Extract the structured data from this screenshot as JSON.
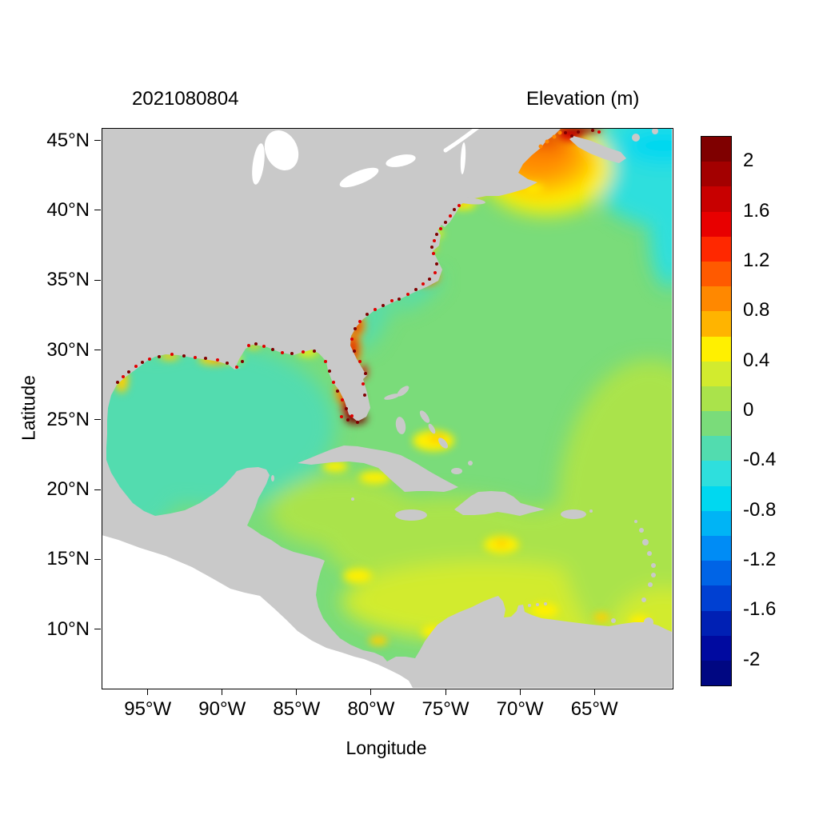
{
  "figure": {
    "background": "#ffffff",
    "title": "2021080804",
    "legend_title": "Elevation (m)"
  },
  "chart_data": {
    "type": "heatmap",
    "subtype": "geospatial elevation field map (storm-surge / sea-surface elevation)",
    "title": "2021080804",
    "legend_title": "Elevation (m)",
    "xlabel": "Longitude",
    "ylabel": "Latitude",
    "x_axis": {
      "range": [
        -98.1,
        -59.8
      ],
      "ticks": [
        {
          "value": -95,
          "label": "95°W"
        },
        {
          "value": -90,
          "label": "90°W"
        },
        {
          "value": -85,
          "label": "85°W"
        },
        {
          "value": -80,
          "label": "80°W"
        },
        {
          "value": -75,
          "label": "75°W"
        },
        {
          "value": -70,
          "label": "70°W"
        },
        {
          "value": -65,
          "label": "65°W"
        }
      ]
    },
    "y_axis": {
      "range": [
        5.8,
        45.9
      ],
      "ticks": [
        {
          "value": 45,
          "label": "45°N"
        },
        {
          "value": 40,
          "label": "40°N"
        },
        {
          "value": 35,
          "label": "35°N"
        },
        {
          "value": 30,
          "label": "30°N"
        },
        {
          "value": 25,
          "label": "25°N"
        },
        {
          "value": 20,
          "label": "20°N"
        },
        {
          "value": 15,
          "label": "15°N"
        },
        {
          "value": 10,
          "label": "10°N"
        }
      ]
    },
    "colorbar": {
      "min": -2.2,
      "max": 2.2,
      "bin_width": 0.2,
      "tick_labels": [
        {
          "value": 2,
          "label": "2"
        },
        {
          "value": 1.6,
          "label": "1.6"
        },
        {
          "value": 1.2,
          "label": "1.2"
        },
        {
          "value": 0.8,
          "label": "0.8"
        },
        {
          "value": 0.4,
          "label": "0.4"
        },
        {
          "value": 0,
          "label": "0"
        },
        {
          "value": -0.4,
          "label": "-0.4"
        },
        {
          "value": -0.8,
          "label": "-0.8"
        },
        {
          "value": -1.2,
          "label": "-1.2"
        },
        {
          "value": -1.6,
          "label": "-1.6"
        },
        {
          "value": -2,
          "label": "-2"
        }
      ],
      "colors_top_to_bottom": [
        "#7f0000",
        "#a30000",
        "#c80000",
        "#e80000",
        "#ff2800",
        "#ff5a00",
        "#ff8800",
        "#ffb400",
        "#fff000",
        "#d2eb2e",
        "#aae34b",
        "#7adc7a",
        "#52dcaf",
        "#2edfdd",
        "#00d8f0",
        "#00b4f5",
        "#008cf5",
        "#0064e6",
        "#0040d2",
        "#0020b4",
        "#000aa0",
        "#000782"
      ]
    },
    "map": {
      "land_color": "#c9c9c9",
      "no_data_color": "#ffffff",
      "regions": {
        "land": {
          "color": "#c9c9c9",
          "approx_elevation_m": "land mask"
        },
        "no_data": {
          "color": "#ffffff",
          "approx_elevation_m": "no data / lakes / Pacific"
        },
        "ocean_base": {
          "color": "#7adc7a",
          "approx_elevation_m": "-0.2 to 0"
        },
        "gulf_of_mexico": {
          "color": "#52dcaf",
          "approx_elevation_m": "-0.4 to -0.2"
        },
        "caribbean": {
          "color": "#aae34b",
          "approx_elevation_m": "0 to 0.2"
        },
        "south_caribbean": {
          "color": "#d2eb2e",
          "approx_elevation_m": "0.2 to 0.4"
        },
        "southeast_atlantic": {
          "color": "#aae34b",
          "approx_elevation_m": "0 to 0.2"
        },
        "scotian_shelf": {
          "color": "#2edfdd",
          "approx_elevation_m": "-0.6 to -0.4"
        },
        "scotian_shelf_core": {
          "color": "#00d8f0",
          "approx_elevation_m": "-0.8 to -0.6"
        },
        "gulf_of_maine_yellow": {
          "color": "#fff000",
          "approx_elevation_m": "0.4 to 0.6"
        },
        "gulf_of_maine_gold": {
          "color": "#ffb400",
          "approx_elevation_m": "0.6 to 0.8"
        },
        "gulf_of_maine_surge": {
          "color": "#ff8800",
          "approx_elevation_m": "0.8 to 1.0"
        },
        "coastal_yellow": {
          "color": "#fff000",
          "approx_elevation_m": "0.4 to 0.6"
        },
        "coastal_gold": {
          "color": "#ffd000",
          "approx_elevation_m": "0.6 to 0.8"
        },
        "coastal_orange": {
          "color": "#ff8800",
          "approx_elevation_m": "0.8 to 1.0"
        },
        "coastal_red": {
          "color": "#e00000",
          "approx_elevation_m": "1.4 to 1.6"
        },
        "coastal_dark_red": {
          "color": "#9b0000",
          "approx_elevation_m": "1.8 to 2.2"
        },
        "florida_extreme": {
          "color": "#7f0000",
          "approx_elevation_m": "> 2"
        }
      },
      "notable_features": [
        "Strong positive elevation (orange, ~+0.8 to +1 m) over the Gulf of Maine near 70°W 43°N",
        "Red to dark-red maximum (>+1.4 m) in the Bay of Fundy at the top edge",
        "Cyan negative anomaly (~-0.5 to -0.8 m) over the Scotian Shelf east of Nova Scotia",
        "Dense dark-red coastal speckling (>+2 m) around South Florida, the northern Gulf coast and the Carolina sounds",
        "Broad slightly negative field (~-0.3 m, aquamarine) filling the Gulf of Mexico",
        "Slightly positive field (~+0.1 to +0.4 m, yellow-green) across the Caribbean Sea and the southeastern part of the domain",
        "Near-zero field (light green) over the open northwest Atlantic",
        "White (no data) over the Pacific side of Central America and the Great Lakes"
      ]
    }
  }
}
